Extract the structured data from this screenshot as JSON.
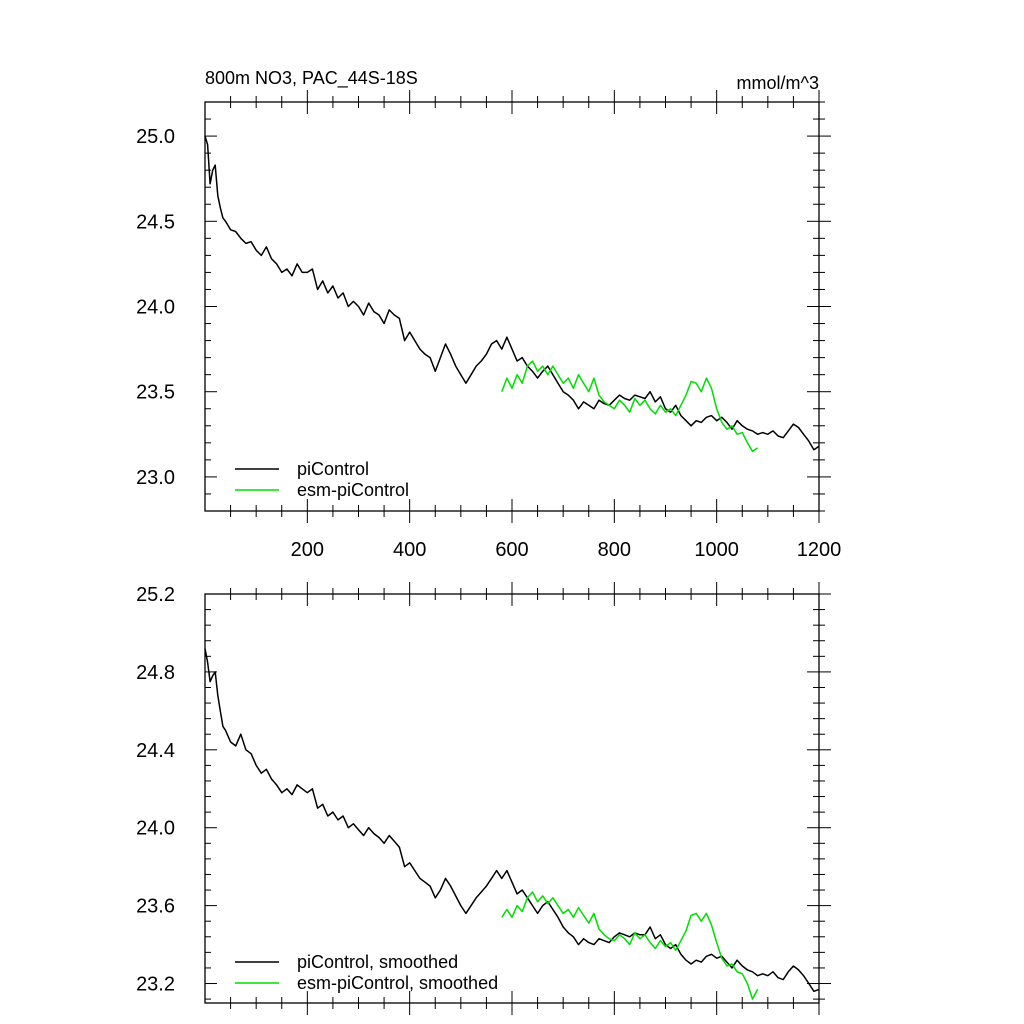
{
  "chart_data": [
    {
      "type": "line",
      "title": "800m NO3, PAC_44S-18S",
      "units": "mmol/m^3",
      "xlabel": "",
      "ylabel": "",
      "xlim": [
        0,
        1200
      ],
      "ylim": [
        22.8,
        25.2
      ],
      "xticks": [
        200,
        400,
        600,
        800,
        1000,
        1200
      ],
      "xtick_labels": [
        "200",
        "400",
        "600",
        "800",
        "1000",
        "1200"
      ],
      "yticks": [
        23.0,
        23.5,
        24.0,
        24.5,
        25.0
      ],
      "ytick_labels": [
        "23.0",
        "23.5",
        "24.0",
        "24.5",
        "25.0"
      ],
      "grid": false,
      "legend_position": "bottom-left",
      "series": [
        {
          "name": "piControl",
          "color": "#000000",
          "x": [
            0,
            5,
            10,
            15,
            20,
            25,
            30,
            35,
            40,
            50,
            60,
            70,
            80,
            90,
            100,
            110,
            120,
            130,
            140,
            150,
            160,
            170,
            180,
            190,
            200,
            210,
            220,
            230,
            240,
            250,
            260,
            270,
            280,
            290,
            300,
            310,
            320,
            330,
            340,
            350,
            360,
            370,
            380,
            390,
            400,
            410,
            420,
            430,
            440,
            450,
            460,
            470,
            480,
            490,
            500,
            510,
            520,
            530,
            540,
            550,
            560,
            570,
            580,
            590,
            600,
            610,
            620,
            630,
            640,
            650,
            660,
            670,
            680,
            690,
            700,
            710,
            720,
            730,
            740,
            750,
            760,
            770,
            780,
            790,
            800,
            810,
            820,
            830,
            840,
            850,
            860,
            870,
            880,
            890,
            900,
            910,
            920,
            930,
            940,
            950,
            960,
            970,
            980,
            990,
            1000,
            1010,
            1020,
            1030,
            1040,
            1050,
            1060,
            1070,
            1080,
            1090,
            1100,
            1110,
            1120,
            1130,
            1140,
            1150,
            1160,
            1170,
            1180,
            1190,
            1200
          ],
          "values": [
            25.0,
            24.95,
            24.72,
            24.8,
            24.83,
            24.65,
            24.58,
            24.52,
            24.5,
            24.45,
            24.44,
            24.4,
            24.37,
            24.38,
            24.33,
            24.3,
            24.35,
            24.28,
            24.25,
            24.2,
            24.22,
            24.18,
            24.25,
            24.2,
            24.2,
            24.22,
            24.1,
            24.15,
            24.08,
            24.12,
            24.05,
            24.08,
            24.0,
            24.03,
            24.0,
            23.95,
            24.02,
            23.97,
            23.95,
            23.9,
            23.98,
            23.95,
            23.93,
            23.8,
            23.85,
            23.8,
            23.75,
            23.72,
            23.7,
            23.62,
            23.7,
            23.78,
            23.72,
            23.65,
            23.6,
            23.55,
            23.6,
            23.65,
            23.68,
            23.72,
            23.78,
            23.8,
            23.75,
            23.82,
            23.75,
            23.68,
            23.7,
            23.65,
            23.62,
            23.58,
            23.62,
            23.65,
            23.6,
            23.55,
            23.5,
            23.48,
            23.45,
            23.4,
            23.44,
            23.42,
            23.4,
            23.45,
            23.43,
            23.42,
            23.45,
            23.48,
            23.46,
            23.45,
            23.48,
            23.47,
            23.46,
            23.5,
            23.44,
            23.47,
            23.4,
            23.38,
            23.42,
            23.36,
            23.33,
            23.3,
            23.33,
            23.32,
            23.35,
            23.36,
            23.33,
            23.35,
            23.32,
            23.28,
            23.33,
            23.3,
            23.28,
            23.27,
            23.25,
            23.26,
            23.25,
            23.27,
            23.24,
            23.23,
            23.27,
            23.31,
            23.29,
            23.25,
            23.21,
            23.16,
            23.18
          ]
        },
        {
          "name": "esm-piControl",
          "color": "#00dd00",
          "x": [
            580,
            590,
            600,
            610,
            620,
            630,
            640,
            650,
            660,
            670,
            680,
            690,
            700,
            710,
            720,
            730,
            740,
            750,
            760,
            770,
            780,
            790,
            800,
            810,
            820,
            830,
            840,
            850,
            860,
            870,
            880,
            890,
            900,
            910,
            920,
            930,
            940,
            950,
            960,
            970,
            980,
            990,
            1000,
            1010,
            1020,
            1030,
            1040,
            1050,
            1060,
            1070,
            1080
          ],
          "values": [
            23.5,
            23.58,
            23.52,
            23.6,
            23.55,
            23.65,
            23.68,
            23.62,
            23.65,
            23.6,
            23.65,
            23.6,
            23.55,
            23.58,
            23.52,
            23.6,
            23.55,
            23.5,
            23.58,
            23.48,
            23.44,
            23.42,
            23.4,
            23.45,
            23.42,
            23.38,
            23.46,
            23.42,
            23.45,
            23.4,
            23.37,
            23.42,
            23.38,
            23.4,
            23.36,
            23.42,
            23.48,
            23.56,
            23.55,
            23.5,
            23.58,
            23.52,
            23.4,
            23.32,
            23.28,
            23.3,
            23.25,
            23.26,
            23.2,
            23.15,
            23.17
          ]
        }
      ]
    },
    {
      "type": "line",
      "title": "",
      "xlabel": "",
      "ylabel": "",
      "xlim": [
        0,
        1200
      ],
      "ylim": [
        23.1,
        25.2
      ],
      "yticks": [
        23.2,
        23.6,
        24.0,
        24.4,
        24.8,
        25.2
      ],
      "ytick_labels": [
        "23.2",
        "23.6",
        "24.0",
        "24.4",
        "24.8",
        "25.2"
      ],
      "grid": false,
      "legend_position": "bottom-left",
      "series": [
        {
          "name": "piControl, smoothed",
          "color": "#000000",
          "x": [
            0,
            5,
            10,
            15,
            20,
            25,
            30,
            35,
            40,
            50,
            60,
            70,
            80,
            90,
            100,
            110,
            120,
            130,
            140,
            150,
            160,
            170,
            180,
            190,
            200,
            210,
            220,
            230,
            240,
            250,
            260,
            270,
            280,
            290,
            300,
            310,
            320,
            330,
            340,
            350,
            360,
            370,
            380,
            390,
            400,
            410,
            420,
            430,
            440,
            450,
            460,
            470,
            480,
            490,
            500,
            510,
            520,
            530,
            540,
            550,
            560,
            570,
            580,
            590,
            600,
            610,
            620,
            630,
            640,
            650,
            660,
            670,
            680,
            690,
            700,
            710,
            720,
            730,
            740,
            750,
            760,
            770,
            780,
            790,
            800,
            810,
            820,
            830,
            840,
            850,
            860,
            870,
            880,
            890,
            900,
            910,
            920,
            930,
            940,
            950,
            960,
            970,
            980,
            990,
            1000,
            1010,
            1020,
            1030,
            1040,
            1050,
            1060,
            1070,
            1080,
            1090,
            1100,
            1110,
            1120,
            1130,
            1140,
            1150,
            1160,
            1170,
            1180,
            1190,
            1200
          ],
          "values": [
            24.92,
            24.85,
            24.75,
            24.78,
            24.8,
            24.68,
            24.6,
            24.52,
            24.5,
            24.44,
            24.42,
            24.48,
            24.4,
            24.38,
            24.32,
            24.28,
            24.3,
            24.25,
            24.22,
            24.18,
            24.2,
            24.17,
            24.22,
            24.2,
            24.18,
            24.2,
            24.1,
            24.12,
            24.06,
            24.08,
            24.04,
            24.06,
            24.0,
            24.02,
            23.99,
            23.96,
            24.0,
            23.97,
            23.95,
            23.92,
            23.96,
            23.93,
            23.9,
            23.8,
            23.82,
            23.78,
            23.74,
            23.72,
            23.7,
            23.64,
            23.68,
            23.74,
            23.7,
            23.65,
            23.6,
            23.56,
            23.6,
            23.64,
            23.67,
            23.7,
            23.74,
            23.78,
            23.74,
            23.78,
            23.72,
            23.66,
            23.68,
            23.64,
            23.6,
            23.56,
            23.6,
            23.62,
            23.58,
            23.54,
            23.49,
            23.46,
            23.44,
            23.4,
            23.43,
            23.41,
            23.4,
            23.43,
            23.42,
            23.41,
            23.44,
            23.46,
            23.45,
            23.44,
            23.46,
            23.45,
            23.45,
            23.49,
            23.43,
            23.45,
            23.4,
            23.38,
            23.4,
            23.35,
            23.32,
            23.3,
            23.32,
            23.31,
            23.34,
            23.35,
            23.33,
            23.34,
            23.31,
            23.28,
            23.32,
            23.29,
            23.27,
            23.26,
            23.24,
            23.25,
            23.24,
            23.26,
            23.23,
            23.22,
            23.26,
            23.29,
            23.27,
            23.24,
            23.2,
            23.16,
            23.17
          ]
        },
        {
          "name": "esm-piControl, smoothed",
          "color": "#00dd00",
          "x": [
            580,
            590,
            600,
            610,
            620,
            630,
            640,
            650,
            660,
            670,
            680,
            690,
            700,
            710,
            720,
            730,
            740,
            750,
            760,
            770,
            780,
            790,
            800,
            810,
            820,
            830,
            840,
            850,
            860,
            870,
            880,
            890,
            900,
            910,
            920,
            930,
            940,
            950,
            960,
            970,
            980,
            990,
            1000,
            1010,
            1020,
            1030,
            1040,
            1050,
            1060,
            1070,
            1080
          ],
          "values": [
            23.54,
            23.58,
            23.54,
            23.6,
            23.57,
            23.64,
            23.67,
            23.62,
            23.65,
            23.61,
            23.64,
            23.6,
            23.56,
            23.58,
            23.54,
            23.59,
            23.55,
            23.51,
            23.56,
            23.48,
            23.45,
            23.43,
            23.42,
            23.45,
            23.43,
            23.4,
            23.46,
            23.43,
            23.45,
            23.41,
            23.38,
            23.42,
            23.39,
            23.41,
            23.37,
            23.42,
            23.47,
            23.55,
            23.56,
            23.52,
            23.56,
            23.5,
            23.41,
            23.33,
            23.29,
            23.3,
            23.26,
            23.25,
            23.2,
            23.12,
            23.17
          ]
        }
      ]
    }
  ]
}
